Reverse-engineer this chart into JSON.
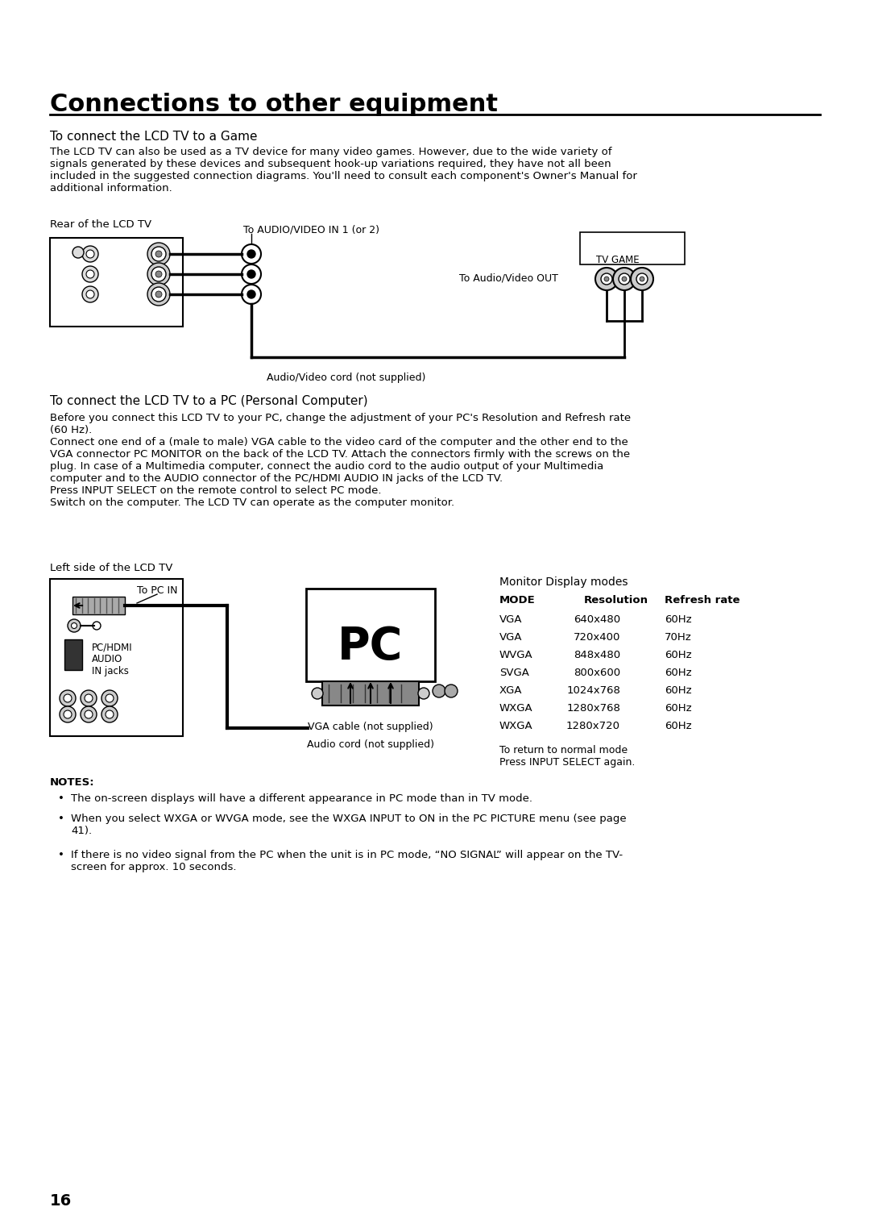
{
  "title": "Connections to other equipment",
  "section1_heading": "To connect the LCD TV to a Game",
  "section1_body": "The LCD TV can also be used as a TV device for many video games. However, due to the wide variety of\nsignals generated by these devices and subsequent hook-up variations required, they have not all been\nincluded in the suggested connection diagrams. You'll need to consult each component's Owner's Manual for\nadditional information.",
  "rear_label": "Rear of the LCD TV",
  "audio_video_label": "To AUDIO/VIDEO IN 1 (or 2)",
  "tv_game_label": "TV GAME",
  "audio_video_out_label": "To Audio/Video OUT",
  "cord_label": "Audio/Video cord (not supplied)",
  "section2_heading": "To connect the LCD TV to a PC (Personal Computer)",
  "section2_body1": "Before you connect this LCD TV to your PC, change the adjustment of your PC's Resolution and Refresh rate\n(60 Hz).",
  "section2_body2": "Connect one end of a (male to male) VGA cable to the video card of the computer and the other end to the\nVGA connector PC MONITOR on the back of the LCD TV. Attach the connectors firmly with the screws on the\nplug. In case of a Multimedia computer, connect the audio cord to the audio output of your Multimedia\ncomputer and to the AUDIO connector of the PC/HDMI AUDIO IN jacks of the LCD TV.\nPress INPUT SELECT on the remote control to select PC mode.\nSwitch on the computer. The LCD TV can operate as the computer monitor.",
  "left_label": "Left side of the LCD TV",
  "pc_in_label": "To PC IN",
  "pchdmi_label": "PC/HDMI\nAUDIO\nIN jacks",
  "vga_cable_label": "VGA cable (not supplied)",
  "audio_cord_label": "Audio cord (not supplied)",
  "monitor_display_label": "Monitor Display modes",
  "table_headers": [
    "MODE",
    "Resolution",
    "Refresh rate"
  ],
  "table_rows": [
    [
      "VGA",
      "640x480",
      "60Hz"
    ],
    [
      "VGA",
      "720x400",
      "70Hz"
    ],
    [
      "WVGA",
      "848x480",
      "60Hz"
    ],
    [
      "SVGA",
      "800x600",
      "60Hz"
    ],
    [
      "XGA",
      "1024x768",
      "60Hz"
    ],
    [
      "WXGA",
      "1280x768",
      "60Hz"
    ],
    [
      "WXGA",
      "1280x720",
      "60Hz"
    ]
  ],
  "return_label": "To return to normal mode\nPress INPUT SELECT again.",
  "notes_heading": "NOTES:",
  "notes": [
    "The on-screen displays will have a different appearance in PC mode than in TV mode.",
    "When you select WXGA or WVGA mode, see the WXGA INPUT to ON in the PC PICTURE menu (see page\n41).",
    "If there is no video signal from the PC when the unit is in PC mode, “NO SIGNAL” will appear on the TV-\nscreen for approx. 10 seconds."
  ],
  "page_number": "16",
  "bg_color": "#ffffff",
  "text_color": "#000000"
}
